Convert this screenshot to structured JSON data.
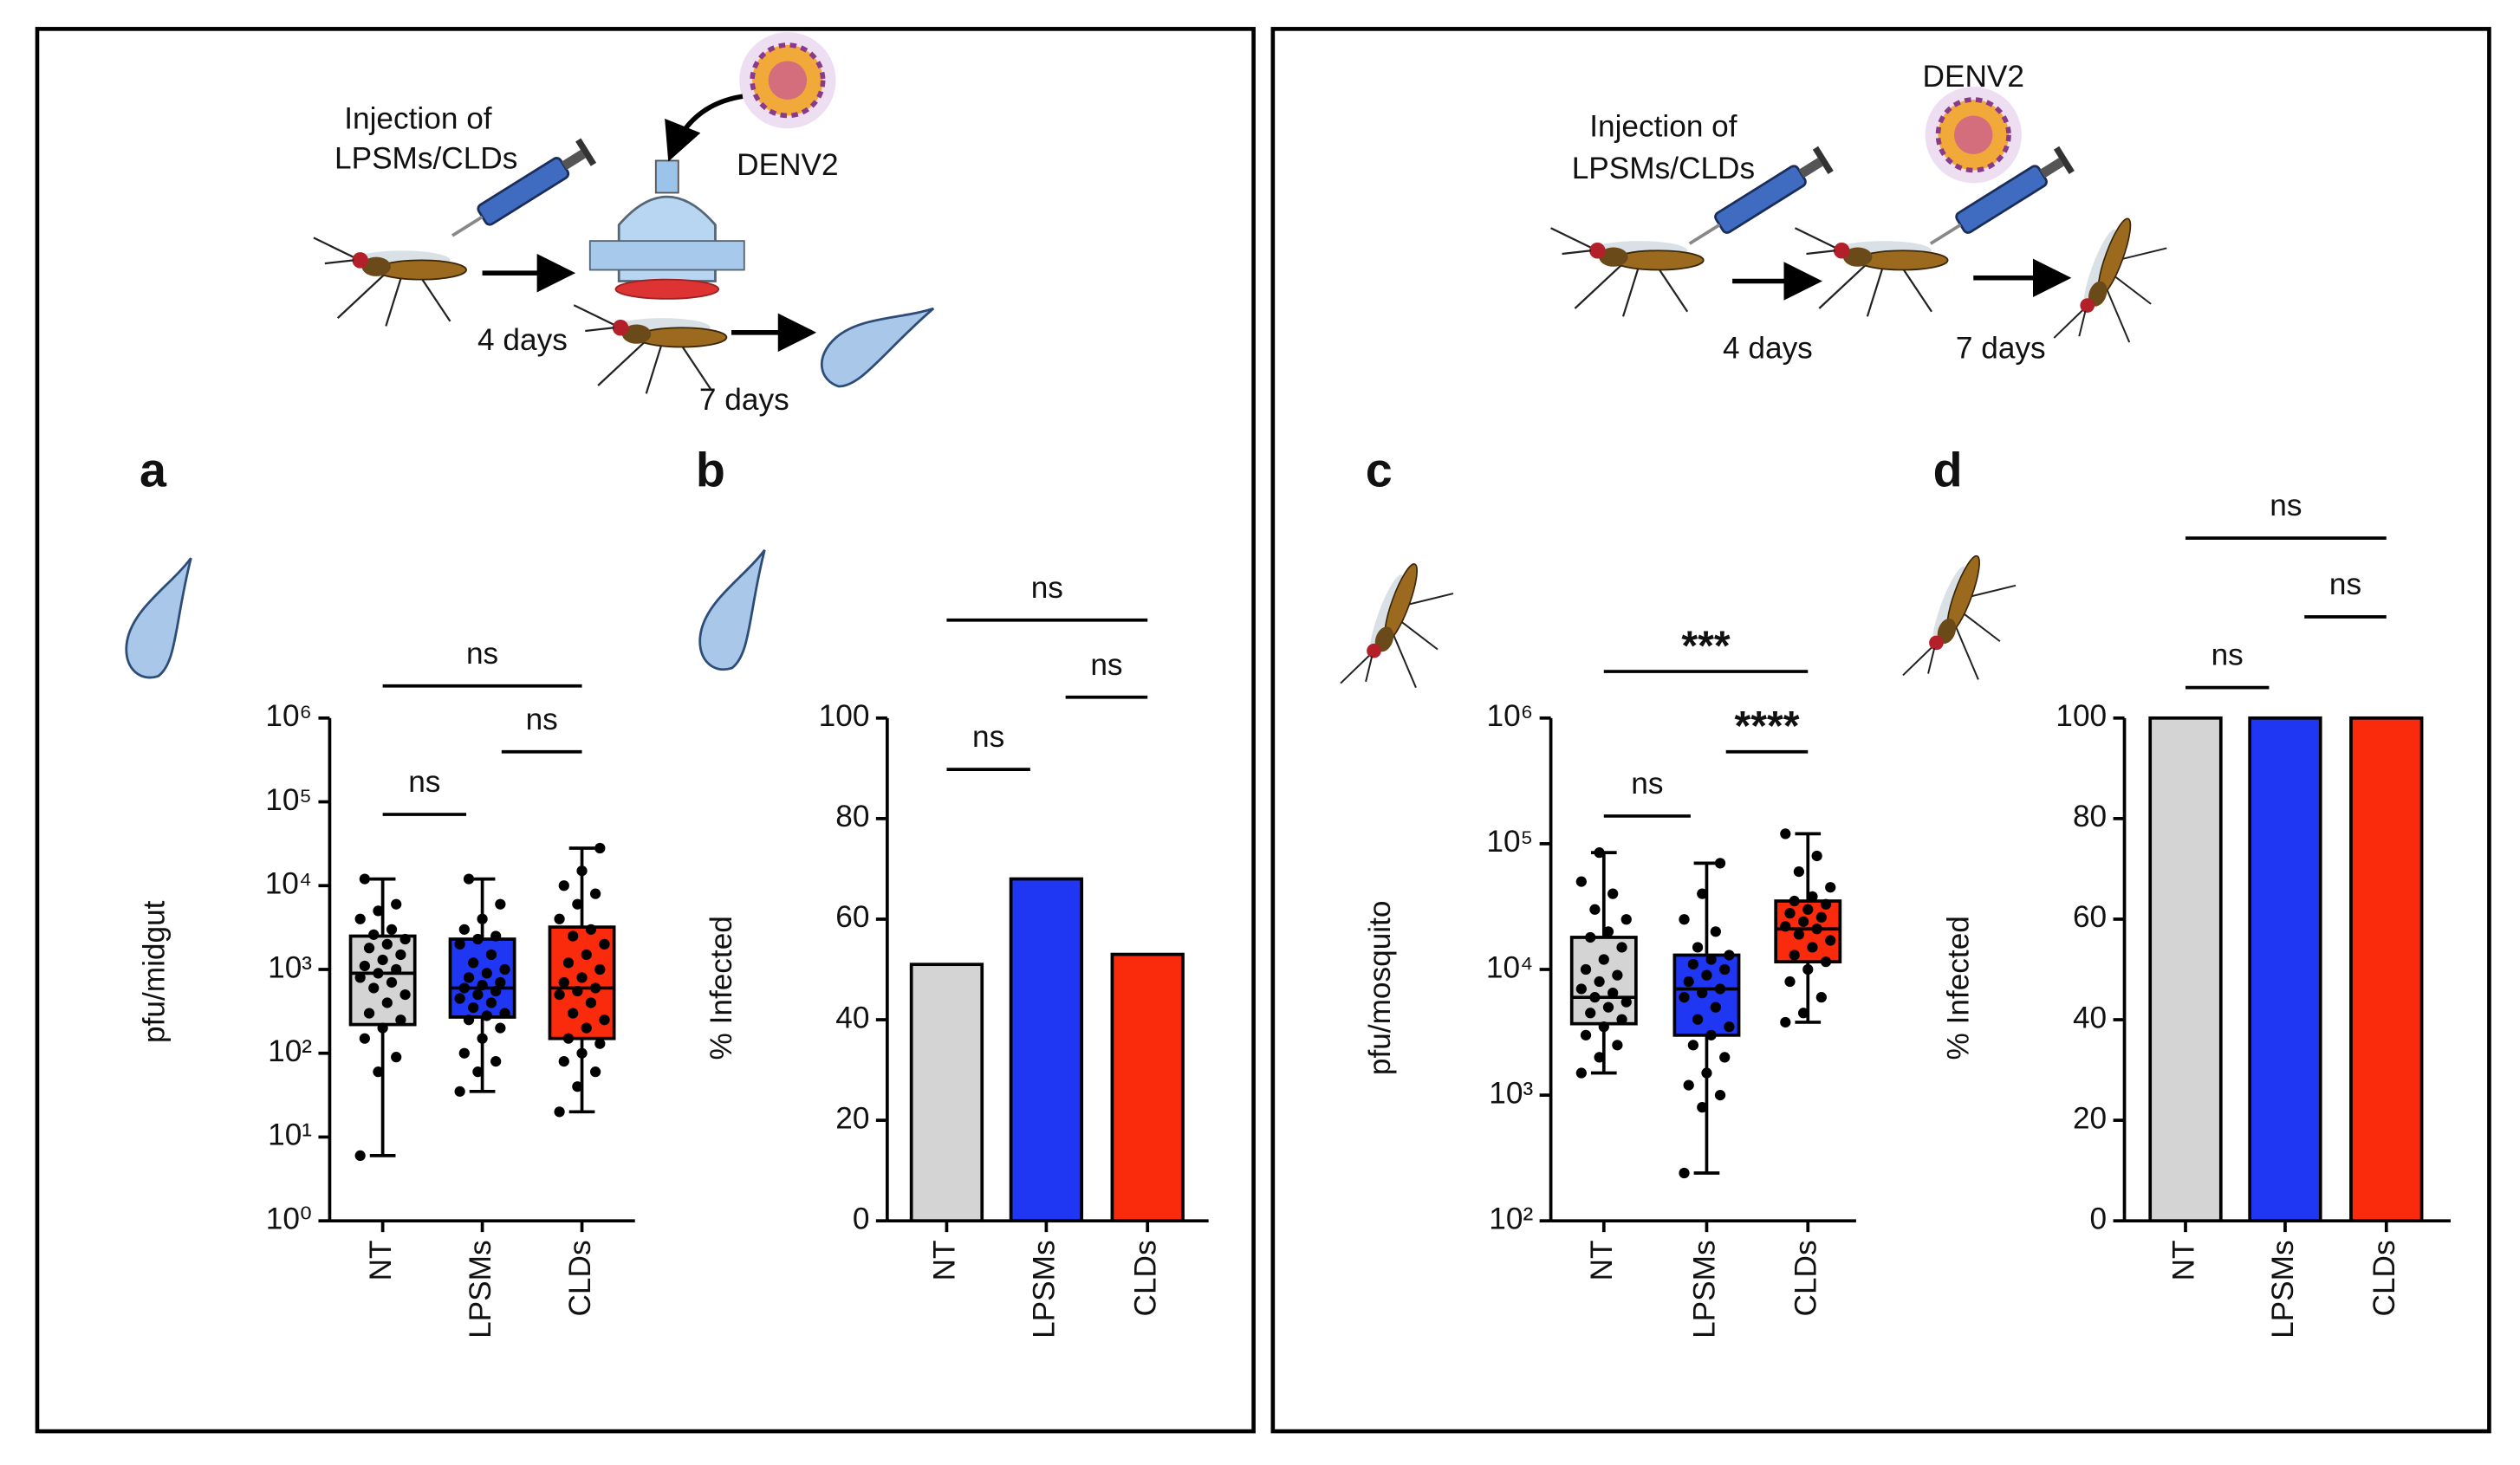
{
  "schematics": [
    {
      "injection": [
        "Injection of",
        "LPSMs/CLDs"
      ],
      "virus": "DENV2",
      "days": [
        "4 days",
        "7 days"
      ]
    },
    {
      "injection": [
        "Injection of",
        "LPSMs/CLDs"
      ],
      "virus": "DENV2",
      "days": [
        "4 days",
        "7 days"
      ]
    }
  ],
  "chart_data": [
    {
      "type": "box",
      "label": "a",
      "ylabel": "pfu/midgut",
      "yscale": "log",
      "ylim": [
        1,
        1000000
      ],
      "yticks": [
        {
          "value": 1,
          "label": "10⁰"
        },
        {
          "value": 10,
          "label": "10¹"
        },
        {
          "value": 100,
          "label": "10²"
        },
        {
          "value": 1000,
          "label": "10³"
        },
        {
          "value": 10000,
          "label": "10⁴"
        },
        {
          "value": 100000,
          "label": "10⁵"
        },
        {
          "value": 1000000,
          "label": "10⁶"
        }
      ],
      "categories": [
        "NT",
        "LPSMs",
        "CLDs"
      ],
      "colors": [
        "#d4d4d4",
        "#1f36f2",
        "#fa2a0c"
      ],
      "boxes": [
        {
          "min": 6,
          "q1": 220,
          "median": 900,
          "q3": 2500,
          "max": 12000,
          "points": [
            6,
            60,
            90,
            150,
            200,
            250,
            300,
            400,
            500,
            600,
            700,
            800,
            900,
            1000,
            1100,
            1300,
            1500,
            1800,
            2000,
            2300,
            2600,
            3000,
            4000,
            5000,
            6000,
            12000
          ]
        },
        {
          "min": 35,
          "q1": 270,
          "median": 600,
          "q3": 2300,
          "max": 12000,
          "points": [
            35,
            60,
            80,
            100,
            150,
            200,
            250,
            280,
            300,
            350,
            400,
            450,
            500,
            550,
            600,
            650,
            700,
            800,
            900,
            1000,
            1200,
            1500,
            2000,
            2300,
            2500,
            3000,
            4000,
            6000,
            12000
          ]
        },
        {
          "min": 20,
          "q1": 150,
          "median": 600,
          "q3": 3200,
          "max": 28000,
          "points": [
            20,
            40,
            60,
            80,
            100,
            130,
            150,
            200,
            250,
            300,
            400,
            500,
            550,
            600,
            700,
            800,
            1000,
            1200,
            1500,
            2000,
            2500,
            3000,
            4000,
            6000,
            8000,
            10000,
            15000,
            28000
          ]
        }
      ],
      "annotations": [
        {
          "text": "ns",
          "pair": [
            "NT",
            "CLDs"
          ]
        },
        {
          "text": "ns",
          "pair": [
            "LPSMs",
            "CLDs"
          ]
        },
        {
          "text": "ns",
          "pair": [
            "NT",
            "LPSMs"
          ]
        }
      ]
    },
    {
      "type": "bar",
      "label": "b",
      "ylabel": "% Infected",
      "ylim": [
        0,
        100
      ],
      "yticks": [
        0,
        20,
        40,
        60,
        80,
        100
      ],
      "categories": [
        "NT",
        "LPSMs",
        "CLDs"
      ],
      "colors": [
        "#d4d4d4",
        "#1f36f2",
        "#fa2a0c"
      ],
      "values": [
        51,
        68,
        53
      ],
      "annotations": [
        {
          "text": "ns",
          "pair": [
            "NT",
            "CLDs"
          ]
        },
        {
          "text": "ns",
          "pair": [
            "LPSMs",
            "CLDs"
          ]
        },
        {
          "text": "ns",
          "pair": [
            "NT",
            "LPSMs"
          ]
        }
      ]
    },
    {
      "type": "box",
      "label": "c",
      "ylabel": "pfu/mosquito",
      "yscale": "log",
      "ylim": [
        100,
        1000000
      ],
      "yticks": [
        {
          "value": 100,
          "label": "10²"
        },
        {
          "value": 1000,
          "label": "10³"
        },
        {
          "value": 10000,
          "label": "10⁴"
        },
        {
          "value": 100000,
          "label": "10⁵"
        },
        {
          "value": 1000000,
          "label": "10⁶"
        }
      ],
      "categories": [
        "NT",
        "LPSMs",
        "CLDs"
      ],
      "colors": [
        "#d4d4d4",
        "#1f36f2",
        "#fa2a0c"
      ],
      "boxes": [
        {
          "min": 1500,
          "q1": 3700,
          "median": 6000,
          "q3": 18000,
          "max": 85000,
          "points": [
            1500,
            2000,
            2500,
            3000,
            3500,
            4000,
            4500,
            5000,
            5500,
            6000,
            6500,
            7000,
            8000,
            9000,
            10000,
            12000,
            15000,
            18000,
            20000,
            25000,
            30000,
            40000,
            50000,
            85000
          ]
        },
        {
          "min": 240,
          "q1": 3000,
          "median": 7000,
          "q3": 13000,
          "max": 70000,
          "points": [
            240,
            800,
            1000,
            1200,
            1500,
            2000,
            2500,
            3000,
            3500,
            4000,
            5000,
            6000,
            6500,
            7000,
            8000,
            9000,
            10000,
            11000,
            12000,
            13000,
            15000,
            20000,
            25000,
            40000,
            70000
          ]
        },
        {
          "min": 3800,
          "q1": 11500,
          "median": 21000,
          "q3": 35000,
          "max": 120000,
          "points": [
            3800,
            4500,
            6000,
            8000,
            10000,
            11500,
            13000,
            15000,
            17000,
            19000,
            21000,
            22000,
            24000,
            26000,
            28000,
            30000,
            33000,
            35000,
            38000,
            45000,
            60000,
            80000,
            120000
          ]
        }
      ],
      "annotations": [
        {
          "text": "***",
          "pair": [
            "NT",
            "CLDs"
          ]
        },
        {
          "text": "****",
          "pair": [
            "LPSMs",
            "CLDs"
          ]
        },
        {
          "text": "ns",
          "pair": [
            "NT",
            "LPSMs"
          ]
        }
      ]
    },
    {
      "type": "bar",
      "label": "d",
      "ylabel": "% Infected",
      "ylim": [
        0,
        100
      ],
      "yticks": [
        0,
        20,
        40,
        60,
        80,
        100
      ],
      "categories": [
        "NT",
        "LPSMs",
        "CLDs"
      ],
      "colors": [
        "#d4d4d4",
        "#1f36f2",
        "#fa2a0c"
      ],
      "values": [
        100,
        100,
        100
      ],
      "annotations": [
        {
          "text": "ns",
          "pair": [
            "NT",
            "CLDs"
          ]
        },
        {
          "text": "ns",
          "pair": [
            "LPSMs",
            "CLDs"
          ]
        },
        {
          "text": "ns",
          "pair": [
            "NT",
            "LPSMs"
          ]
        }
      ]
    }
  ]
}
